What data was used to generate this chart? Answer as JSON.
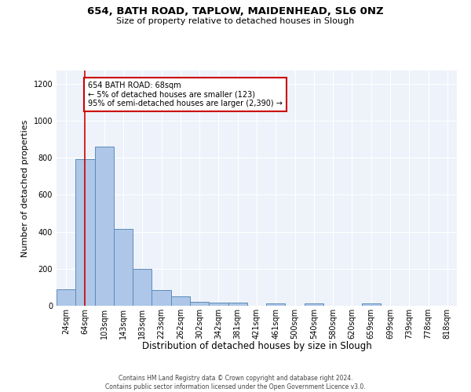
{
  "title1": "654, BATH ROAD, TAPLOW, MAIDENHEAD, SL6 0NZ",
  "title2": "Size of property relative to detached houses in Slough",
  "xlabel": "Distribution of detached houses by size in Slough",
  "ylabel": "Number of detached properties",
  "categories": [
    "24sqm",
    "64sqm",
    "103sqm",
    "143sqm",
    "183sqm",
    "223sqm",
    "262sqm",
    "302sqm",
    "342sqm",
    "381sqm",
    "421sqm",
    "461sqm",
    "500sqm",
    "540sqm",
    "580sqm",
    "620sqm",
    "659sqm",
    "699sqm",
    "739sqm",
    "778sqm",
    "818sqm"
  ],
  "values": [
    90,
    790,
    860,
    415,
    200,
    85,
    50,
    22,
    15,
    15,
    0,
    12,
    0,
    12,
    0,
    0,
    12,
    0,
    0,
    0,
    0
  ],
  "bar_color": "#aec6e8",
  "bar_edge_color": "#5b8db8",
  "vline_x": 1.0,
  "vline_color": "#cc0000",
  "annotation_text": "654 BATH ROAD: 68sqm\n← 5% of detached houses are smaller (123)\n95% of semi-detached houses are larger (2,390) →",
  "annotation_box_color": "#ffffff",
  "annotation_box_edge_color": "#cc0000",
  "ylim": [
    0,
    1270
  ],
  "yticks": [
    0,
    200,
    400,
    600,
    800,
    1000,
    1200
  ],
  "background_color": "#eef2fa",
  "footer": "Contains HM Land Registry data © Crown copyright and database right 2024.\nContains public sector information licensed under the Open Government Licence v3.0.",
  "title1_fontsize": 9.5,
  "title2_fontsize": 8,
  "ylabel_fontsize": 8,
  "xlabel_fontsize": 8.5,
  "tick_fontsize": 7,
  "footer_fontsize": 5.5
}
